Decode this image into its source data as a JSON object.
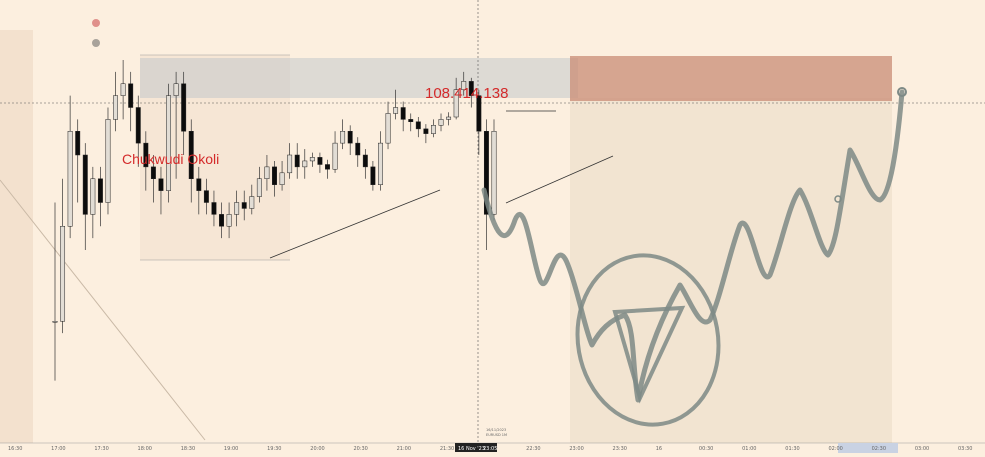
{
  "chart_data": {
    "type": "candlestick",
    "watermark_label": "Chukwudi Okoli",
    "price_label": "108.414.138",
    "crosshair_date": "16 Nov '23",
    "crosshair_time": "23:05",
    "crosshair_info_line1": "16/11/2023",
    "crosshair_info_line2": "EURUSD 1M",
    "x_ticks": [
      "16:30",
      "17:00",
      "17:30",
      "18:00",
      "18:30",
      "19:00",
      "19:30",
      "20:00",
      "20:30",
      "21:00",
      "21:30",
      "22:00",
      "22:30",
      "23:00",
      "23:30",
      "16",
      "00:30",
      "01:00",
      "01:30",
      "02:00",
      "02:30",
      "03:00",
      "03:30"
    ],
    "colors": {
      "background": "#fcefdf",
      "bull_candle": "#e2ddd5",
      "bear_candle": "#0c0c0c",
      "price_label": "#d42a2a",
      "target_zone": "#c98c76",
      "stop_zone": "#b7c0c8",
      "drawing": "#7e8a86"
    },
    "candles": [
      [
        1.0,
        1.0,
        2.0,
        0.5
      ],
      [
        1.0,
        1.8,
        2.2,
        0.9
      ],
      [
        1.8,
        2.6,
        2.9,
        1.7
      ],
      [
        2.6,
        2.4,
        2.7,
        2.0
      ],
      [
        2.4,
        1.9,
        2.5,
        1.6
      ],
      [
        1.9,
        2.2,
        2.3,
        1.7
      ],
      [
        2.2,
        2.0,
        2.3,
        1.8
      ],
      [
        2.0,
        2.7,
        2.8,
        1.9
      ],
      [
        2.7,
        2.9,
        3.1,
        2.6
      ],
      [
        2.9,
        3.0,
        3.2,
        2.7
      ],
      [
        3.0,
        2.8,
        3.1,
        2.6
      ],
      [
        2.8,
        2.5,
        2.9,
        2.3
      ],
      [
        2.5,
        2.3,
        2.6,
        2.1
      ],
      [
        2.3,
        2.2,
        2.4,
        2.0
      ],
      [
        2.2,
        2.1,
        2.3,
        1.9
      ],
      [
        2.1,
        2.9,
        3.0,
        2.0
      ],
      [
        2.9,
        3.0,
        3.1,
        2.2
      ],
      [
        3.0,
        2.6,
        3.1,
        2.4
      ],
      [
        2.6,
        2.2,
        2.7,
        2.0
      ],
      [
        2.2,
        2.1,
        2.3,
        1.9
      ],
      [
        2.1,
        2.0,
        2.2,
        1.9
      ],
      [
        2.0,
        1.9,
        2.1,
        1.8
      ],
      [
        1.9,
        1.8,
        2.0,
        1.7
      ],
      [
        1.8,
        1.9,
        2.0,
        1.7
      ],
      [
        1.9,
        2.0,
        2.1,
        1.8
      ],
      [
        2.0,
        1.95,
        2.1,
        1.85
      ],
      [
        1.95,
        2.05,
        2.15,
        1.9
      ],
      [
        2.05,
        2.2,
        2.3,
        2.0
      ],
      [
        2.2,
        2.3,
        2.4,
        2.1
      ],
      [
        2.3,
        2.15,
        2.35,
        2.05
      ],
      [
        2.15,
        2.25,
        2.35,
        2.1
      ],
      [
        2.25,
        2.4,
        2.5,
        2.2
      ],
      [
        2.4,
        2.3,
        2.5,
        2.2
      ],
      [
        2.3,
        2.35,
        2.45,
        2.2
      ],
      [
        2.35,
        2.38,
        2.42,
        2.3
      ],
      [
        2.38,
        2.32,
        2.42,
        2.25
      ],
      [
        2.32,
        2.28,
        2.36,
        2.2
      ],
      [
        2.28,
        2.5,
        2.6,
        2.25
      ],
      [
        2.5,
        2.6,
        2.7,
        2.45
      ],
      [
        2.6,
        2.5,
        2.65,
        2.4
      ],
      [
        2.5,
        2.4,
        2.55,
        2.3
      ],
      [
        2.4,
        2.3,
        2.45,
        2.2
      ],
      [
        2.3,
        2.15,
        2.35,
        2.1
      ],
      [
        2.15,
        2.5,
        2.6,
        2.1
      ],
      [
        2.5,
        2.75,
        2.85,
        2.45
      ],
      [
        2.75,
        2.8,
        2.95,
        2.7
      ],
      [
        2.8,
        2.7,
        2.85,
        2.6
      ],
      [
        2.7,
        2.68,
        2.75,
        2.6
      ],
      [
        2.68,
        2.62,
        2.72,
        2.55
      ],
      [
        2.62,
        2.58,
        2.66,
        2.5
      ],
      [
        2.58,
        2.65,
        2.7,
        2.55
      ],
      [
        2.65,
        2.7,
        2.75,
        2.6
      ],
      [
        2.7,
        2.72,
        2.76,
        2.65
      ],
      [
        2.72,
        2.95,
        3.05,
        2.7
      ],
      [
        2.95,
        3.02,
        3.1,
        2.9
      ],
      [
        3.02,
        2.9,
        3.05,
        2.8
      ],
      [
        2.9,
        2.6,
        2.95,
        2.4
      ],
      [
        2.6,
        1.9,
        2.7,
        1.6
      ],
      [
        1.9,
        2.6,
        2.7,
        1.85
      ]
    ]
  }
}
